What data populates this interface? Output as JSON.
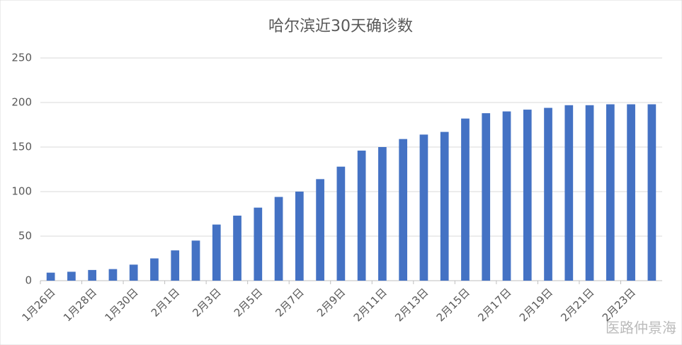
{
  "chart_data": {
    "type": "bar",
    "title": "哈尔滨近30天确诊数",
    "categories": [
      "1月26日",
      null,
      "1月28日",
      null,
      "1月30日",
      null,
      "2月1日",
      null,
      "2月3日",
      null,
      "2月5日",
      null,
      "2月7日",
      null,
      "2月9日",
      null,
      "2月11日",
      null,
      "2月13日",
      null,
      "2月15日",
      null,
      "2月17日",
      null,
      "2月19日",
      null,
      "2月21日",
      null,
      "2月23日",
      null
    ],
    "values": [
      9,
      10,
      12,
      13,
      18,
      25,
      34,
      45,
      63,
      73,
      82,
      94,
      100,
      114,
      128,
      146,
      150,
      159,
      164,
      167,
      182,
      188,
      190,
      192,
      194,
      197,
      197,
      198,
      198,
      198
    ],
    "color": "#4472c4",
    "ylim": [
      0,
      250
    ],
    "yticks": [
      0,
      50,
      100,
      150,
      200,
      250
    ],
    "grid": true,
    "watermark": "医路仲景海"
  }
}
